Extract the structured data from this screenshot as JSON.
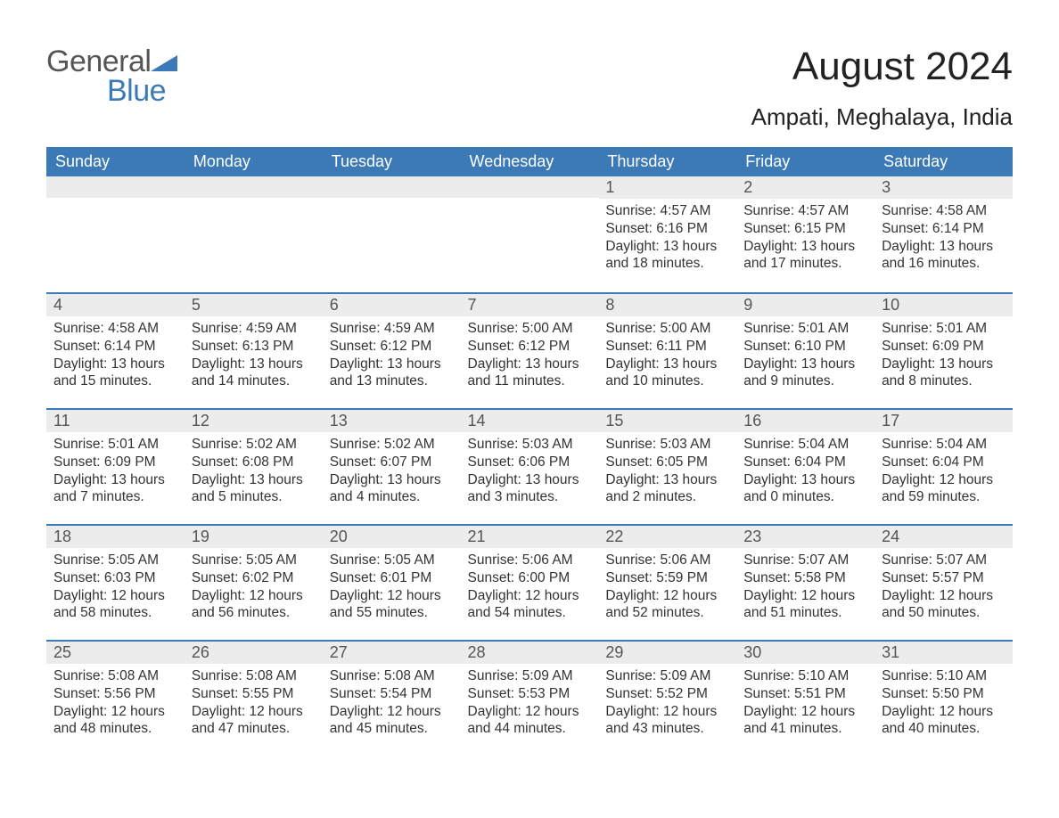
{
  "logo": {
    "word1": "General",
    "word2": "Blue",
    "brand_color": "#3b79b7",
    "grey": "#555555"
  },
  "title": "August 2024",
  "location": "Ampati, Meghalaya, India",
  "colors": {
    "header_bg": "#3b79b7",
    "header_text": "#ffffff",
    "daybar_bg": "#ececec",
    "text": "#333333"
  },
  "day_headers": [
    "Sunday",
    "Monday",
    "Tuesday",
    "Wednesday",
    "Thursday",
    "Friday",
    "Saturday"
  ],
  "weeks": [
    [
      null,
      null,
      null,
      null,
      {
        "n": "1",
        "sunrise": "4:57 AM",
        "sunset": "6:16 PM",
        "dl": "13 hours and 18 minutes."
      },
      {
        "n": "2",
        "sunrise": "4:57 AM",
        "sunset": "6:15 PM",
        "dl": "13 hours and 17 minutes."
      },
      {
        "n": "3",
        "sunrise": "4:58 AM",
        "sunset": "6:14 PM",
        "dl": "13 hours and 16 minutes."
      }
    ],
    [
      {
        "n": "4",
        "sunrise": "4:58 AM",
        "sunset": "6:14 PM",
        "dl": "13 hours and 15 minutes."
      },
      {
        "n": "5",
        "sunrise": "4:59 AM",
        "sunset": "6:13 PM",
        "dl": "13 hours and 14 minutes."
      },
      {
        "n": "6",
        "sunrise": "4:59 AM",
        "sunset": "6:12 PM",
        "dl": "13 hours and 13 minutes."
      },
      {
        "n": "7",
        "sunrise": "5:00 AM",
        "sunset": "6:12 PM",
        "dl": "13 hours and 11 minutes."
      },
      {
        "n": "8",
        "sunrise": "5:00 AM",
        "sunset": "6:11 PM",
        "dl": "13 hours and 10 minutes."
      },
      {
        "n": "9",
        "sunrise": "5:01 AM",
        "sunset": "6:10 PM",
        "dl": "13 hours and 9 minutes."
      },
      {
        "n": "10",
        "sunrise": "5:01 AM",
        "sunset": "6:09 PM",
        "dl": "13 hours and 8 minutes."
      }
    ],
    [
      {
        "n": "11",
        "sunrise": "5:01 AM",
        "sunset": "6:09 PM",
        "dl": "13 hours and 7 minutes."
      },
      {
        "n": "12",
        "sunrise": "5:02 AM",
        "sunset": "6:08 PM",
        "dl": "13 hours and 5 minutes."
      },
      {
        "n": "13",
        "sunrise": "5:02 AM",
        "sunset": "6:07 PM",
        "dl": "13 hours and 4 minutes."
      },
      {
        "n": "14",
        "sunrise": "5:03 AM",
        "sunset": "6:06 PM",
        "dl": "13 hours and 3 minutes."
      },
      {
        "n": "15",
        "sunrise": "5:03 AM",
        "sunset": "6:05 PM",
        "dl": "13 hours and 2 minutes."
      },
      {
        "n": "16",
        "sunrise": "5:04 AM",
        "sunset": "6:04 PM",
        "dl": "13 hours and 0 minutes."
      },
      {
        "n": "17",
        "sunrise": "5:04 AM",
        "sunset": "6:04 PM",
        "dl": "12 hours and 59 minutes."
      }
    ],
    [
      {
        "n": "18",
        "sunrise": "5:05 AM",
        "sunset": "6:03 PM",
        "dl": "12 hours and 58 minutes."
      },
      {
        "n": "19",
        "sunrise": "5:05 AM",
        "sunset": "6:02 PM",
        "dl": "12 hours and 56 minutes."
      },
      {
        "n": "20",
        "sunrise": "5:05 AM",
        "sunset": "6:01 PM",
        "dl": "12 hours and 55 minutes."
      },
      {
        "n": "21",
        "sunrise": "5:06 AM",
        "sunset": "6:00 PM",
        "dl": "12 hours and 54 minutes."
      },
      {
        "n": "22",
        "sunrise": "5:06 AM",
        "sunset": "5:59 PM",
        "dl": "12 hours and 52 minutes."
      },
      {
        "n": "23",
        "sunrise": "5:07 AM",
        "sunset": "5:58 PM",
        "dl": "12 hours and 51 minutes."
      },
      {
        "n": "24",
        "sunrise": "5:07 AM",
        "sunset": "5:57 PM",
        "dl": "12 hours and 50 minutes."
      }
    ],
    [
      {
        "n": "25",
        "sunrise": "5:08 AM",
        "sunset": "5:56 PM",
        "dl": "12 hours and 48 minutes."
      },
      {
        "n": "26",
        "sunrise": "5:08 AM",
        "sunset": "5:55 PM",
        "dl": "12 hours and 47 minutes."
      },
      {
        "n": "27",
        "sunrise": "5:08 AM",
        "sunset": "5:54 PM",
        "dl": "12 hours and 45 minutes."
      },
      {
        "n": "28",
        "sunrise": "5:09 AM",
        "sunset": "5:53 PM",
        "dl": "12 hours and 44 minutes."
      },
      {
        "n": "29",
        "sunrise": "5:09 AM",
        "sunset": "5:52 PM",
        "dl": "12 hours and 43 minutes."
      },
      {
        "n": "30",
        "sunrise": "5:10 AM",
        "sunset": "5:51 PM",
        "dl": "12 hours and 41 minutes."
      },
      {
        "n": "31",
        "sunrise": "5:10 AM",
        "sunset": "5:50 PM",
        "dl": "12 hours and 40 minutes."
      }
    ]
  ],
  "labels": {
    "sunrise": "Sunrise: ",
    "sunset": "Sunset: ",
    "daylight": "Daylight: "
  }
}
